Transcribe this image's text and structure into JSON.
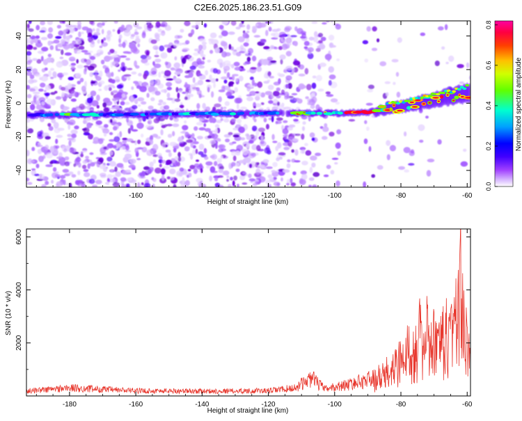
{
  "title": "C2E6.2025.186.23.51.G09",
  "chart_data": [
    {
      "type": "heatmap",
      "xlabel": "Height of straight line (km)",
      "ylabel": "Frequency (Hz)",
      "xlim": [
        -193,
        -59
      ],
      "ylim": [
        -50,
        49
      ],
      "x_ticks": [
        -180,
        -160,
        -140,
        -120,
        -100,
        -80,
        -60
      ],
      "y_ticks": [
        -40,
        -20,
        0,
        20,
        40
      ],
      "colorbar": {
        "label": "Normalized spectral amplitude",
        "range": [
          0,
          0.82
        ],
        "ticks": [
          0.0,
          0.2,
          0.4,
          0.6,
          0.8
        ],
        "colors": [
          "#ffffff",
          "#b060ff",
          "#4000ff",
          "#0000ff",
          "#00c0ff",
          "#00ffc0",
          "#80ff00",
          "#ffff00",
          "#ff8000",
          "#ff0040",
          "#ff00a0"
        ]
      },
      "ridge": {
        "description_points": [
          {
            "x": -193,
            "y": -7
          },
          {
            "x": -120,
            "y": -6
          },
          {
            "x": -100,
            "y": -6
          },
          {
            "x": -88,
            "y": -5
          },
          {
            "x": -80,
            "y": -2
          },
          {
            "x": -70,
            "y": 2
          },
          {
            "x": -60,
            "y": 6
          }
        ]
      }
    },
    {
      "type": "line",
      "xlabel": "Height of straight line (km)",
      "ylabel": "SNR (10 * v/v)",
      "xlim": [
        -193,
        -59
      ],
      "ylim": [
        0,
        6300
      ],
      "x_ticks": [
        -180,
        -160,
        -140,
        -120,
        -100,
        -80,
        -60
      ],
      "y_ticks": [
        2000,
        4000,
        6000
      ],
      "color": "#e8382e",
      "envelope": [
        {
          "x": -193,
          "y": 250
        },
        {
          "x": -180,
          "y": 400
        },
        {
          "x": -160,
          "y": 260
        },
        {
          "x": -140,
          "y": 240
        },
        {
          "x": -120,
          "y": 260
        },
        {
          "x": -112,
          "y": 400
        },
        {
          "x": -107,
          "y": 900
        },
        {
          "x": -103,
          "y": 350
        },
        {
          "x": -95,
          "y": 600
        },
        {
          "x": -88,
          "y": 900
        },
        {
          "x": -84,
          "y": 1400
        },
        {
          "x": -80,
          "y": 2200
        },
        {
          "x": -76,
          "y": 3200
        },
        {
          "x": -72,
          "y": 3500
        },
        {
          "x": -68,
          "y": 3000
        },
        {
          "x": -65,
          "y": 4200
        },
        {
          "x": -62,
          "y": 6200
        },
        {
          "x": -60,
          "y": 2800
        },
        {
          "x": -59,
          "y": 2500
        }
      ]
    }
  ]
}
